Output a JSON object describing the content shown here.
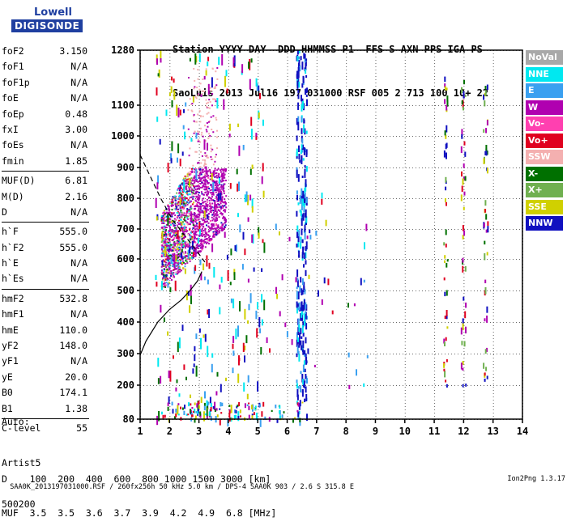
{
  "logo": {
    "line1": "Lowell",
    "line2": "DIGISONDE"
  },
  "header": {
    "line1": "Station YYYY DAY  DDD HHMMSS P1  FFS S AXN PPS IGA PS",
    "line2": "SaoLuis 2013 Jul16 197 031000 RSF 005 2 713 100 10+ 22"
  },
  "params": [
    {
      "label": "foF2",
      "value": "3.150"
    },
    {
      "label": "foF1",
      "value": "N/A"
    },
    {
      "label": "foF1p",
      "value": "N/A"
    },
    {
      "label": "foE",
      "value": "N/A"
    },
    {
      "label": "foEp",
      "value": "0.48"
    },
    {
      "label": "fxI",
      "value": "3.00"
    },
    {
      "label": "foEs",
      "value": "N/A"
    },
    {
      "label": "fmin",
      "value": "1.85"
    },
    {
      "sep": true
    },
    {
      "label": "MUF(D)",
      "value": "6.81"
    },
    {
      "label": "M(D)",
      "value": "2.16"
    },
    {
      "label": "D",
      "value": "N/A"
    },
    {
      "sep": true
    },
    {
      "label": "h`F",
      "value": "555.0"
    },
    {
      "label": "h`F2",
      "value": "555.0"
    },
    {
      "label": "h`E",
      "value": "N/A"
    },
    {
      "label": "h`Es",
      "value": "N/A"
    },
    {
      "sep": true
    },
    {
      "label": "hmF2",
      "value": "532.8"
    },
    {
      "label": "hmF1",
      "value": "N/A"
    },
    {
      "label": "hmE",
      "value": "110.0"
    },
    {
      "label": "yF2",
      "value": "148.0"
    },
    {
      "label": "yF1",
      "value": "N/A"
    },
    {
      "label": "yE",
      "value": "20.0"
    },
    {
      "label": "B0",
      "value": "174.1"
    },
    {
      "label": "B1",
      "value": "1.38"
    },
    {
      "sep": true
    },
    {
      "label": "C-level",
      "value": "55"
    }
  ],
  "auto": {
    "line1": "Auto:",
    "line2": "Artist5",
    "line3": "500200"
  },
  "legend": [
    {
      "label": "NoVal",
      "color": "#a8a8a8"
    },
    {
      "label": "NNE",
      "color": "#00e8f0"
    },
    {
      "label": "E",
      "color": "#3aa0f0"
    },
    {
      "label": "W",
      "color": "#b000b0"
    },
    {
      "label": "Vo-",
      "color": "#ff40b0"
    },
    {
      "label": "Vo+",
      "color": "#e00020"
    },
    {
      "label": "SSW",
      "color": "#f4b0b0"
    },
    {
      "label": "X-",
      "color": "#007000"
    },
    {
      "label": "X+",
      "color": "#70b050"
    },
    {
      "label": "SSE",
      "color": "#d0d000"
    },
    {
      "label": "NNW",
      "color": "#1010c0"
    }
  ],
  "muf_table": {
    "line1": "D    100  200  400  600  800 1000 1500 3000 [km]",
    "line2": "MUF  3.5  3.5  3.6  3.7  3.9  4.2  4.9  6.8 [MHz]"
  },
  "footer": {
    "left": "SAA0K_2013197031000.RSF / 260fx256h 50 kHz 5.0 km / DPS-4 SAA0K 903 / 2.6 S 315.8 E",
    "right": "Ion2Png 1.3.17"
  },
  "chart_data": {
    "type": "scatter",
    "x_ticks": [
      "1",
      "2",
      "3",
      "4",
      "5",
      "6",
      "7",
      "8",
      "9",
      "10",
      "11",
      "12",
      "13",
      "14"
    ],
    "y_ticks": [
      "80",
      "200",
      "300",
      "400",
      "500",
      "600",
      "700",
      "800",
      "900",
      "1000",
      "1100",
      "1280"
    ],
    "xlim": [
      1,
      14
    ],
    "ylim": [
      80,
      1280
    ],
    "grid": true,
    "traces": [
      {
        "name": "",
        "style": "dashed",
        "x": [
          1.0,
          1.3,
          1.7,
          2.1,
          2.5,
          2.9,
          3.2
        ],
        "y": [
          940,
          880,
          800,
          730,
          680,
          630,
          590
        ]
      },
      {
        "name": "",
        "style": "solid",
        "x": [
          1.0,
          1.2,
          1.6,
          2.0,
          2.4,
          2.7,
          2.95,
          3.1
        ],
        "y": [
          295,
          340,
          400,
          440,
          470,
          500,
          530,
          560
        ]
      }
    ],
    "echo_regions": [
      {
        "name": "F-trace",
        "x": [
          1.7,
          3.9
        ],
        "y": [
          500,
          900
        ],
        "dominant": "W"
      },
      {
        "name": "freq-6.4",
        "x": [
          6.35,
          6.6
        ],
        "y": [
          80,
          1280
        ],
        "dominant": "NNW"
      }
    ]
  }
}
